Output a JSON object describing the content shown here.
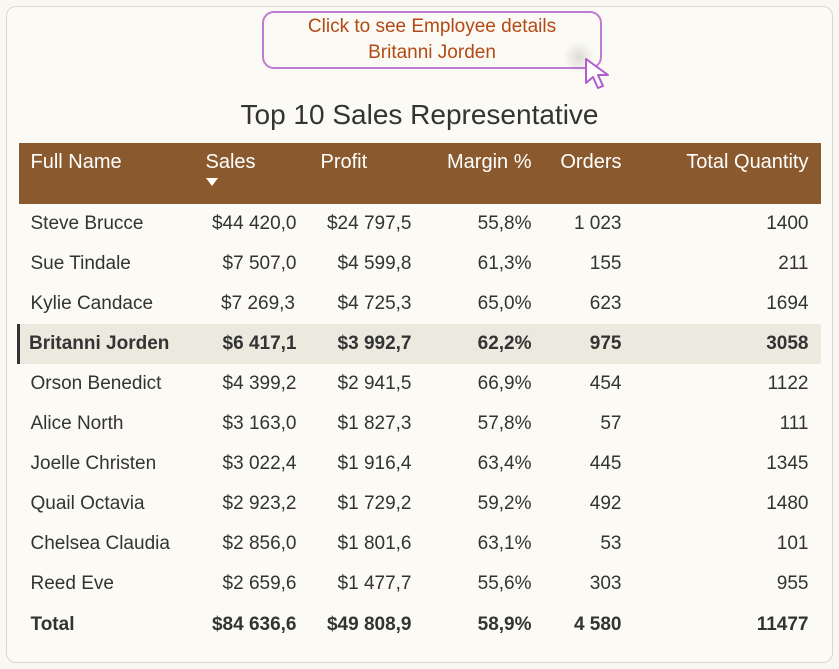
{
  "tooltip": {
    "line1": "Click to see Employee details",
    "line2": "Britanni Jorden"
  },
  "title": "Top 10 Sales Representative",
  "columns": {
    "name": "Full Name",
    "sales": "Sales",
    "profit": "Profit",
    "margin": "Margin %",
    "orders": "Orders",
    "qty": "Total Quantity"
  },
  "sort": {
    "column": "sales",
    "dir": "desc"
  },
  "highlight_row_index": 3,
  "rows": [
    {
      "name": "Steve Brucce",
      "sales": "$44 420,0",
      "profit": "$24 797,5",
      "margin": "55,8%",
      "orders": "1 023",
      "qty": "1400"
    },
    {
      "name": "Sue Tindale",
      "sales": "$7 507,0",
      "profit": "$4 599,8",
      "margin": "61,3%",
      "orders": "155",
      "qty": "211"
    },
    {
      "name": "Kylie Candace",
      "sales": "$7 269,3",
      "profit": "$4 725,3",
      "margin": "65,0%",
      "orders": "623",
      "qty": "1694"
    },
    {
      "name": "Britanni Jorden",
      "sales": "$6 417,1",
      "profit": "$3 992,7",
      "margin": "62,2%",
      "orders": "975",
      "qty": "3058"
    },
    {
      "name": "Orson Benedict",
      "sales": "$4 399,2",
      "profit": "$2 941,5",
      "margin": "66,9%",
      "orders": "454",
      "qty": "1122"
    },
    {
      "name": "Alice North",
      "sales": "$3 163,0",
      "profit": "$1 827,3",
      "margin": "57,8%",
      "orders": "57",
      "qty": "111"
    },
    {
      "name": "Joelle Christen",
      "sales": "$3 022,4",
      "profit": "$1 916,4",
      "margin": "63,4%",
      "orders": "445",
      "qty": "1345"
    },
    {
      "name": "Quail Octavia",
      "sales": "$2 923,2",
      "profit": "$1 729,2",
      "margin": "59,2%",
      "orders": "492",
      "qty": "1480"
    },
    {
      "name": "Chelsea Claudia",
      "sales": "$2 856,0",
      "profit": "$1 801,6",
      "margin": "63,1%",
      "orders": "53",
      "qty": "101"
    },
    {
      "name": "Reed Eve",
      "sales": "$2 659,6",
      "profit": "$1 477,7",
      "margin": "55,6%",
      "orders": "303",
      "qty": "955"
    }
  ],
  "total": {
    "label": "Total",
    "sales": "$84 636,6",
    "profit": "$49 808,9",
    "margin": "58,9%",
    "orders": "4 580",
    "qty": "11477"
  },
  "colors": {
    "header_bg": "#8a5a2e",
    "header_fg": "#ffffff",
    "tooltip_border": "#c07bd4",
    "tooltip_fg": "#b34a16",
    "page_bg": "#fbfaf4",
    "highlight_bg": "#eceade",
    "cursor_stroke": "#b05bd0"
  }
}
